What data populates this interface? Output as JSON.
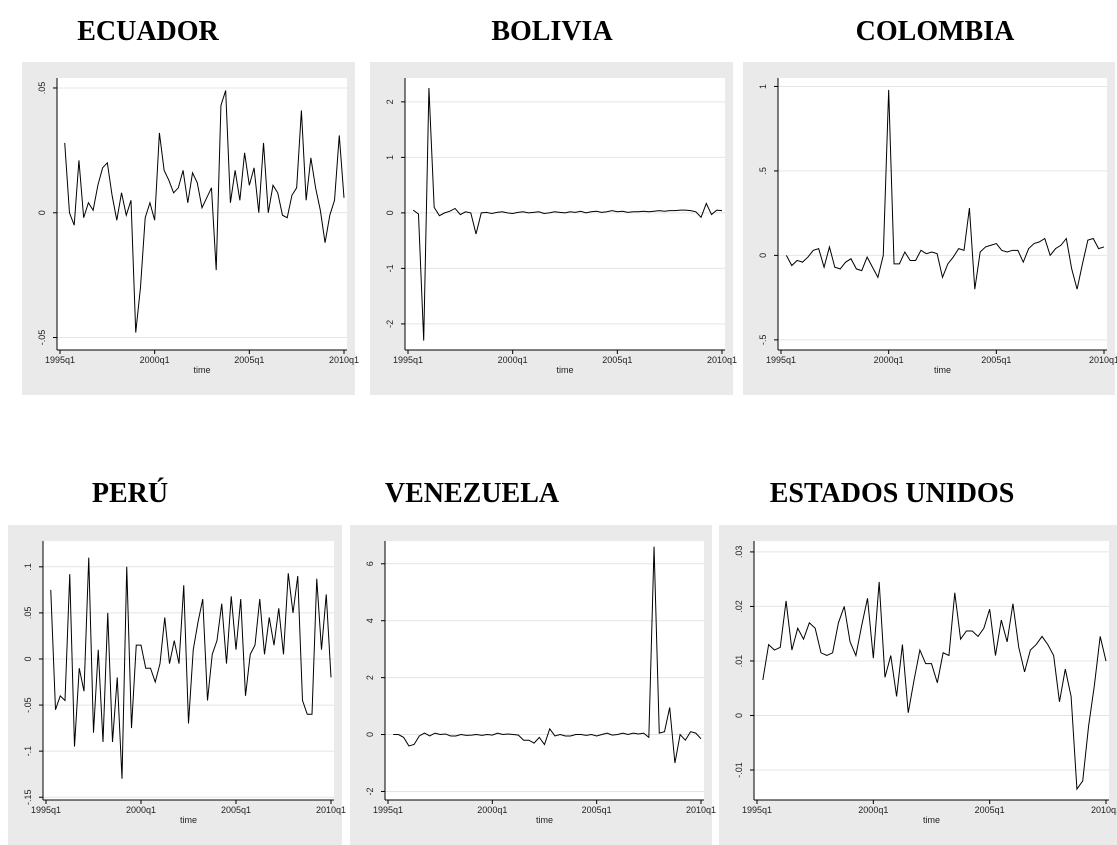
{
  "chart_data": [
    {
      "type": "line",
      "title": "ECUADOR",
      "x_label": "time",
      "grid": true,
      "color": "#000000",
      "x": [
        "1995q2",
        "1995q3",
        "1995q4",
        "1996q1",
        "1996q2",
        "1996q3",
        "1996q4",
        "1997q1",
        "1997q2",
        "1997q3",
        "1997q4",
        "1998q1",
        "1998q2",
        "1998q3",
        "1998q4",
        "1999q1",
        "1999q2",
        "1999q3",
        "1999q4",
        "2000q1",
        "2000q2",
        "2000q3",
        "2000q4",
        "2001q1",
        "2001q2",
        "2001q3",
        "2001q4",
        "2002q1",
        "2002q2",
        "2002q3",
        "2002q4",
        "2003q1",
        "2003q2",
        "2003q3",
        "2003q4",
        "2004q1",
        "2004q2",
        "2004q3",
        "2004q4",
        "2005q1",
        "2005q2",
        "2005q3",
        "2005q4",
        "2006q1",
        "2006q2",
        "2006q3",
        "2006q4",
        "2007q1",
        "2007q2",
        "2007q3",
        "2007q4",
        "2008q1",
        "2008q2",
        "2008q3",
        "2008q4",
        "2009q1",
        "2009q2",
        "2009q3",
        "2009q4",
        "2010q1"
      ],
      "values": [
        0.028,
        0,
        -0.005,
        0.021,
        -0.002,
        0.004,
        0.001,
        0.011,
        0.018,
        0.02,
        0.007,
        -0.003,
        0.008,
        -0.001,
        0.005,
        -0.048,
        -0.03,
        -0.002,
        0.004,
        -0.003,
        0.032,
        0.017,
        0.013,
        0.008,
        0.01,
        0.017,
        0.004,
        0.016,
        0.012,
        0.002,
        0.006,
        0.01,
        -0.023,
        0.043,
        0.049,
        0.004,
        0.017,
        0.005,
        0.024,
        0.011,
        0.018,
        0,
        0.028,
        0,
        0.011,
        0.008,
        -0.001,
        -0.002,
        0.007,
        0.01,
        0.041,
        0.005,
        0.022,
        0.01,
        0.001,
        -0.012,
        -0.001,
        0.005,
        0.031,
        0.006
      ],
      "xlim": [
        "1995q1",
        "2010q1"
      ],
      "xticks": [
        "1995q1",
        "2000q1",
        "2005q1",
        "2010q1"
      ],
      "ylim": [
        -0.055,
        0.054
      ],
      "yticks": [
        {
          "value": -0.05,
          "label": "-.05"
        },
        0,
        {
          "value": 0.05,
          "label": ".05"
        }
      ]
    },
    {
      "type": "line",
      "title": "BOLIVIA",
      "x_label": "time",
      "grid": true,
      "color": "#000000",
      "x": [
        "1995q2",
        "1995q3",
        "1995q4",
        "1996q1",
        "1996q2",
        "1996q3",
        "1996q4",
        "1997q1",
        "1997q2",
        "1997q3",
        "1997q4",
        "1998q1",
        "1998q2",
        "1998q3",
        "1998q4",
        "1999q1",
        "1999q2",
        "1999q3",
        "1999q4",
        "2000q1",
        "2000q2",
        "2000q3",
        "2000q4",
        "2001q1",
        "2001q2",
        "2001q3",
        "2001q4",
        "2002q1",
        "2002q2",
        "2002q3",
        "2002q4",
        "2003q1",
        "2003q2",
        "2003q3",
        "2003q4",
        "2004q1",
        "2004q2",
        "2004q3",
        "2004q4",
        "2005q1",
        "2005q2",
        "2005q3",
        "2005q4",
        "2006q1",
        "2006q2",
        "2006q3",
        "2006q4",
        "2007q1",
        "2007q2",
        "2007q3",
        "2007q4",
        "2008q1",
        "2008q2",
        "2008q3",
        "2008q4",
        "2009q1",
        "2009q2",
        "2009q3",
        "2009q4",
        "2010q1"
      ],
      "values": [
        0.05,
        -0.02,
        -2.3,
        2.25,
        0.1,
        -0.05,
        0,
        0.03,
        0.08,
        -0.03,
        0.02,
        0,
        -0.38,
        0,
        0.01,
        -0.01,
        0.01,
        0.02,
        0,
        -0.01,
        0.01,
        0.02,
        0,
        0.01,
        0.02,
        -0.01,
        0,
        0.02,
        0.01,
        0,
        0.02,
        0.01,
        0.03,
        0,
        0.02,
        0.03,
        0.01,
        0.02,
        0.04,
        0.02,
        0.03,
        0.01,
        0.02,
        0.02,
        0.03,
        0.02,
        0.03,
        0.04,
        0.03,
        0.04,
        0.04,
        0.05,
        0.05,
        0.04,
        0.02,
        -0.08,
        0.17,
        -0.03,
        0.05,
        0.04
      ],
      "xlim": [
        "1995q1",
        "2010q1"
      ],
      "xticks": [
        "1995q1",
        "2000q1",
        "2005q1",
        "2010q1"
      ],
      "ylim": [
        -2.47,
        2.43
      ],
      "yticks": [
        -2,
        -1,
        0,
        1,
        2
      ]
    },
    {
      "type": "line",
      "title": "COLOMBIA",
      "x_label": "time",
      "grid": true,
      "color": "#000000",
      "x": [
        "1995q2",
        "1995q3",
        "1995q4",
        "1996q1",
        "1996q2",
        "1996q3",
        "1996q4",
        "1997q1",
        "1997q2",
        "1997q3",
        "1997q4",
        "1998q1",
        "1998q2",
        "1998q3",
        "1998q4",
        "1999q1",
        "1999q2",
        "1999q3",
        "1999q4",
        "2000q1",
        "2000q2",
        "2000q3",
        "2000q4",
        "2001q1",
        "2001q2",
        "2001q3",
        "2001q4",
        "2002q1",
        "2002q2",
        "2002q3",
        "2002q4",
        "2003q1",
        "2003q2",
        "2003q3",
        "2003q4",
        "2004q1",
        "2004q2",
        "2004q3",
        "2004q4",
        "2005q1",
        "2005q2",
        "2005q3",
        "2005q4",
        "2006q1",
        "2006q2",
        "2006q3",
        "2006q4",
        "2007q1",
        "2007q2",
        "2007q3",
        "2007q4",
        "2008q1",
        "2008q2",
        "2008q3",
        "2008q4",
        "2009q1",
        "2009q2",
        "2009q3",
        "2009q4",
        "2010q1"
      ],
      "values": [
        0,
        -0.06,
        -0.03,
        -0.04,
        -0.01,
        0.03,
        0.04,
        -0.07,
        0.05,
        -0.07,
        -0.08,
        -0.04,
        -0.02,
        -0.08,
        -0.09,
        -0.01,
        -0.07,
        -0.13,
        0,
        0.98,
        -0.05,
        -0.05,
        0.02,
        -0.03,
        -0.03,
        0.03,
        0.01,
        0.02,
        0.01,
        -0.13,
        -0.05,
        -0.01,
        0.04,
        0.03,
        0.28,
        -0.2,
        0.02,
        0.05,
        0.06,
        0.07,
        0.03,
        0.02,
        0.03,
        0.03,
        -0.04,
        0.04,
        0.07,
        0.08,
        0.1,
        0,
        0.04,
        0.06,
        0.1,
        -0.08,
        -0.2,
        -0.05,
        0.09,
        0.1,
        0.04,
        0.05
      ],
      "xlim": [
        "1995q1",
        "2010q1"
      ],
      "xticks": [
        "1995q1",
        "2000q1",
        "2005q1",
        "2010q1"
      ],
      "ylim": [
        -0.56,
        1.05
      ],
      "yticks": [
        {
          "value": -0.5,
          "label": "-.5"
        },
        0,
        {
          "value": 0.5,
          "label": ".5"
        },
        1
      ]
    },
    {
      "type": "line",
      "title": "PERÚ",
      "x_label": "time",
      "grid": true,
      "color": "#000000",
      "x": [
        "1995q2",
        "1995q3",
        "1995q4",
        "1996q1",
        "1996q2",
        "1996q3",
        "1996q4",
        "1997q1",
        "1997q2",
        "1997q3",
        "1997q4",
        "1998q1",
        "1998q2",
        "1998q3",
        "1998q4",
        "1999q1",
        "1999q2",
        "1999q3",
        "1999q4",
        "2000q1",
        "2000q2",
        "2000q3",
        "2000q4",
        "2001q1",
        "2001q2",
        "2001q3",
        "2001q4",
        "2002q1",
        "2002q2",
        "2002q3",
        "2002q4",
        "2003q1",
        "2003q2",
        "2003q3",
        "2003q4",
        "2004q1",
        "2004q2",
        "2004q3",
        "2004q4",
        "2005q1",
        "2005q2",
        "2005q3",
        "2005q4",
        "2006q1",
        "2006q2",
        "2006q3",
        "2006q4",
        "2007q1",
        "2007q2",
        "2007q3",
        "2007q4",
        "2008q1",
        "2008q2",
        "2008q3",
        "2008q4",
        "2009q1",
        "2009q2",
        "2009q3",
        "2009q4",
        "2010q1"
      ],
      "values": [
        0.075,
        -0.055,
        -0.04,
        -0.045,
        0.092,
        -0.095,
        -0.01,
        -0.035,
        0.11,
        -0.08,
        0.01,
        -0.09,
        0.05,
        -0.09,
        -0.02,
        -0.13,
        0.1,
        -0.075,
        0.015,
        0.015,
        -0.01,
        -0.01,
        -0.025,
        -0.005,
        0.045,
        -0.005,
        0.02,
        -0.005,
        0.08,
        -0.07,
        0.01,
        0.04,
        0.065,
        -0.045,
        0.005,
        0.02,
        0.06,
        -0.005,
        0.068,
        0.01,
        0.065,
        -0.04,
        0.005,
        0.015,
        0.065,
        0.005,
        0.045,
        0.015,
        0.055,
        0.005,
        0.093,
        0.05,
        0.09,
        -0.045,
        -0.06,
        -0.06,
        0.087,
        0.01,
        0.07,
        -0.02
      ],
      "xlim": [
        "1995q1",
        "2010q1"
      ],
      "xticks": [
        "1995q1",
        "2000q1",
        "2005q1",
        "2010q1"
      ],
      "ylim": [
        -0.153,
        0.128
      ],
      "yticks": [
        {
          "value": -0.15,
          "label": "-.15"
        },
        {
          "value": -0.1,
          "label": "-.1"
        },
        {
          "value": -0.05,
          "label": "-.05"
        },
        0,
        {
          "value": 0.05,
          "label": ".05"
        },
        {
          "value": 0.1,
          "label": ".1"
        }
      ]
    },
    {
      "type": "line",
      "title": "VENEZUELA",
      "x_label": "time",
      "grid": true,
      "color": "#000000",
      "x": [
        "1995q2",
        "1995q3",
        "1995q4",
        "1996q1",
        "1996q2",
        "1996q3",
        "1996q4",
        "1997q1",
        "1997q2",
        "1997q3",
        "1997q4",
        "1998q1",
        "1998q2",
        "1998q3",
        "1998q4",
        "1999q1",
        "1999q2",
        "1999q3",
        "1999q4",
        "2000q1",
        "2000q2",
        "2000q3",
        "2000q4",
        "2001q1",
        "2001q2",
        "2001q3",
        "2001q4",
        "2002q1",
        "2002q2",
        "2002q3",
        "2002q4",
        "2003q1",
        "2003q2",
        "2003q3",
        "2003q4",
        "2004q1",
        "2004q2",
        "2004q3",
        "2004q4",
        "2005q1",
        "2005q2",
        "2005q3",
        "2005q4",
        "2006q1",
        "2006q2",
        "2006q3",
        "2006q4",
        "2007q1",
        "2007q2",
        "2007q3",
        "2007q4",
        "2008q1",
        "2008q2",
        "2008q3",
        "2008q4",
        "2009q1",
        "2009q2",
        "2009q3",
        "2009q4",
        "2010q1"
      ],
      "values": [
        0,
        0,
        -0.1,
        -0.4,
        -0.35,
        -0.05,
        0.05,
        -0.05,
        0.05,
        0,
        0.02,
        -0.05,
        -0.05,
        0,
        -0.03,
        -0.02,
        0,
        -0.03,
        0,
        -0.02,
        0.05,
        0,
        0.02,
        0,
        -0.02,
        -0.2,
        -0.2,
        -0.3,
        -0.1,
        -0.35,
        0.2,
        -0.05,
        0,
        -0.05,
        -0.05,
        0,
        0,
        -0.03,
        0,
        -0.05,
        0,
        0.05,
        -0.02,
        0,
        0.05,
        0,
        0.05,
        0.02,
        0.05,
        -0.1,
        6.6,
        0.05,
        0.1,
        0.95,
        -1.0,
        0,
        -0.2,
        0.1,
        0.05,
        -0.15
      ],
      "xlim": [
        "1995q1",
        "2010q1"
      ],
      "xticks": [
        "1995q1",
        "2000q1",
        "2005q1",
        "2010q1"
      ],
      "ylim": [
        -2.3,
        6.8
      ],
      "yticks": [
        -2,
        0,
        2,
        4,
        6
      ]
    },
    {
      "type": "line",
      "title": "ESTADOS UNIDOS",
      "x_label": "time",
      "grid": true,
      "color": "#000000",
      "x": [
        "1995q2",
        "1995q3",
        "1995q4",
        "1996q1",
        "1996q2",
        "1996q3",
        "1996q4",
        "1997q1",
        "1997q2",
        "1997q3",
        "1997q4",
        "1998q1",
        "1998q2",
        "1998q3",
        "1998q4",
        "1999q1",
        "1999q2",
        "1999q3",
        "1999q4",
        "2000q1",
        "2000q2",
        "2000q3",
        "2000q4",
        "2001q1",
        "2001q2",
        "2001q3",
        "2001q4",
        "2002q1",
        "2002q2",
        "2002q3",
        "2002q4",
        "2003q1",
        "2003q2",
        "2003q3",
        "2003q4",
        "2004q1",
        "2004q2",
        "2004q3",
        "2004q4",
        "2005q1",
        "2005q2",
        "2005q3",
        "2005q4",
        "2006q1",
        "2006q2",
        "2006q3",
        "2006q4",
        "2007q1",
        "2007q2",
        "2007q3",
        "2007q4",
        "2008q1",
        "2008q2",
        "2008q3",
        "2008q4",
        "2009q1",
        "2009q2",
        "2009q3",
        "2009q4",
        "2010q1"
      ],
      "values": [
        0.0065,
        0.013,
        0.012,
        0.0125,
        0.021,
        0.012,
        0.016,
        0.014,
        0.017,
        0.016,
        0.0115,
        0.011,
        0.0115,
        0.017,
        0.02,
        0.0135,
        0.011,
        0.0165,
        0.0215,
        0.0105,
        0.0245,
        0.007,
        0.011,
        0.0035,
        0.013,
        0.0005,
        0.0065,
        0.012,
        0.0095,
        0.0095,
        0.006,
        0.0115,
        0.011,
        0.0225,
        0.014,
        0.0155,
        0.0155,
        0.0145,
        0.016,
        0.0195,
        0.011,
        0.0175,
        0.0135,
        0.0205,
        0.0125,
        0.008,
        0.012,
        0.013,
        0.0145,
        0.013,
        0.011,
        0.0025,
        0.0085,
        0.0035,
        -0.0135,
        -0.012,
        -0.002,
        0.0055,
        0.0145,
        0.01
      ],
      "xlim": [
        "1995q1",
        "2010q1"
      ],
      "xticks": [
        "1995q1",
        "2000q1",
        "2005q1",
        "2010q1"
      ],
      "ylim": [
        -0.0155,
        0.032
      ],
      "yticks": [
        {
          "value": -0.01,
          "label": "-.01"
        },
        0,
        {
          "value": 0.01,
          "label": ".01"
        },
        {
          "value": 0.02,
          "label": ".02"
        },
        {
          "value": 0.03,
          "label": ".03"
        }
      ]
    }
  ]
}
